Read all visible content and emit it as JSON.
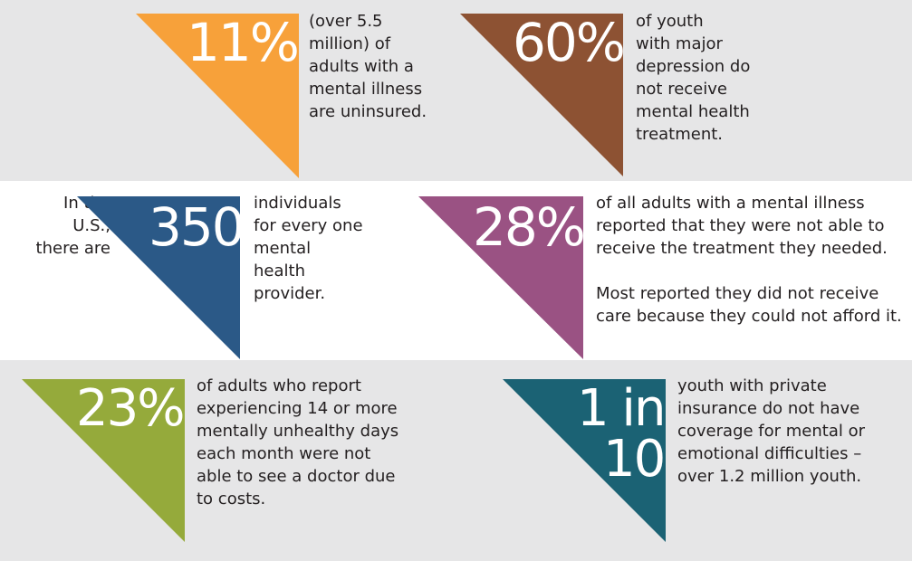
{
  "colors": {
    "band_gray": "#e6e6e7",
    "orange": "#f7a13a",
    "brown": "#8d5233",
    "blue": "#2b5987",
    "purple": "#9a5283",
    "green": "#95aa3b",
    "teal": "#1b6274"
  },
  "stats": {
    "uninsured": {
      "value": "11%",
      "text": "(over 5.5\nmillion) of\nadults with a\nmental illness\nare uninsured."
    },
    "youth_depression": {
      "value": "60%",
      "text": "of youth\nwith major\ndepression do\nnot receive\nmental health\ntreatment."
    },
    "providers": {
      "prefix": "In the\nU.S.,\nthere are",
      "value": "350",
      "text": "individuals\nfor every one\nmental\nhealth\nprovider."
    },
    "unmet_need": {
      "value": "28%",
      "text": "of all adults with a mental illness\nreported that they were not able to\nreceive the treatment they needed.",
      "text2": "Most reported they did not receive\ncare because they could not afford it."
    },
    "unhealthy_days": {
      "value": "23%",
      "text": "of adults who report\nexperiencing 14 or more\nmentally unhealthy days\neach month were not\nable to see a doctor due\nto costs."
    },
    "private_insurance": {
      "value_line1": "1 in",
      "value_line2": "10",
      "text": "youth with private\ninsurance do not have\ncoverage for mental or\nemotional difficulties –\nover 1.2 million youth."
    }
  }
}
